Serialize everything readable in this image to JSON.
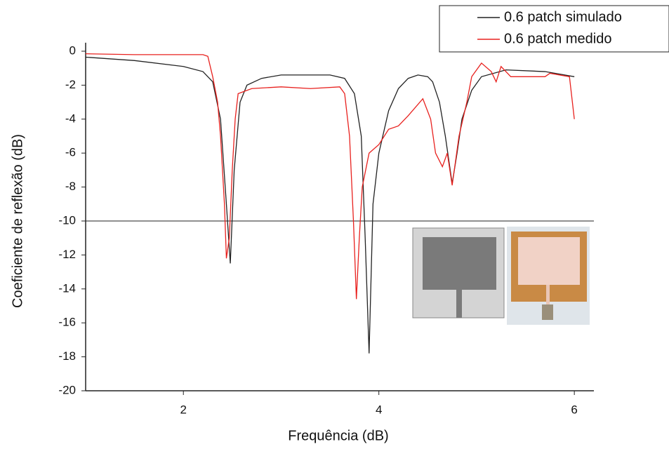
{
  "chart_data": {
    "type": "line",
    "x_label": "Frequência (dB)",
    "y_label": "Coeficiente de reflexão (dB)",
    "xlim": [
      1,
      6.2
    ],
    "ylim": [
      -20,
      0.5
    ],
    "xticks": [
      2,
      4,
      6
    ],
    "yticks": [
      0,
      -2,
      -4,
      -6,
      -8,
      -10,
      -12,
      -14,
      -16,
      -18,
      -20
    ],
    "reference_line": -10,
    "series": [
      {
        "name": "0.6 patch simulado",
        "color": "#222222",
        "x": [
          1.0,
          1.5,
          2.0,
          2.2,
          2.3,
          2.38,
          2.44,
          2.48,
          2.52,
          2.58,
          2.65,
          2.8,
          3.0,
          3.5,
          3.65,
          3.75,
          3.82,
          3.86,
          3.9,
          3.94,
          4.0,
          4.1,
          4.2,
          4.3,
          4.4,
          4.5,
          4.55,
          4.62,
          4.68,
          4.75,
          4.8,
          4.85,
          4.95,
          5.05,
          5.3,
          5.7,
          6.0
        ],
        "values": [
          -0.35,
          -0.55,
          -0.9,
          -1.2,
          -1.8,
          -4,
          -9,
          -12.5,
          -7,
          -3,
          -2,
          -1.6,
          -1.4,
          -1.4,
          -1.6,
          -2.5,
          -5,
          -11,
          -17.8,
          -9,
          -6,
          -3.5,
          -2.2,
          -1.6,
          -1.4,
          -1.5,
          -1.8,
          -3,
          -5,
          -7.8,
          -6,
          -4,
          -2.3,
          -1.5,
          -1.1,
          -1.2,
          -1.5
        ]
      },
      {
        "name": "0.6 patch medido",
        "color": "#e8211e",
        "x": [
          1.0,
          1.5,
          2.0,
          2.2,
          2.25,
          2.3,
          2.35,
          2.38,
          2.42,
          2.44,
          2.47,
          2.5,
          2.53,
          2.56,
          2.7,
          3.0,
          3.3,
          3.6,
          3.65,
          3.7,
          3.74,
          3.77,
          3.8,
          3.83,
          3.9,
          4.0,
          4.1,
          4.2,
          4.3,
          4.45,
          4.53,
          4.58,
          4.65,
          4.7,
          4.75,
          4.82,
          4.9,
          4.95,
          5.05,
          5.15,
          5.2,
          5.25,
          5.35,
          5.7,
          5.75,
          5.95,
          6.0
        ],
        "values": [
          -0.15,
          -0.2,
          -0.2,
          -0.2,
          -0.3,
          -1.5,
          -3,
          -5,
          -9,
          -12.2,
          -11,
          -7,
          -4,
          -2.5,
          -2.2,
          -2.1,
          -2.2,
          -2.1,
          -2.5,
          -5,
          -10,
          -14.6,
          -11,
          -8,
          -6,
          -5.5,
          -4.6,
          -4.4,
          -3.8,
          -2.8,
          -4,
          -6,
          -6.8,
          -6,
          -7.9,
          -5,
          -3,
          -1.5,
          -0.7,
          -1.2,
          -1.8,
          -0.9,
          -1.5,
          -1.5,
          -1.3,
          -1.5,
          -4
        ]
      }
    ]
  }
}
